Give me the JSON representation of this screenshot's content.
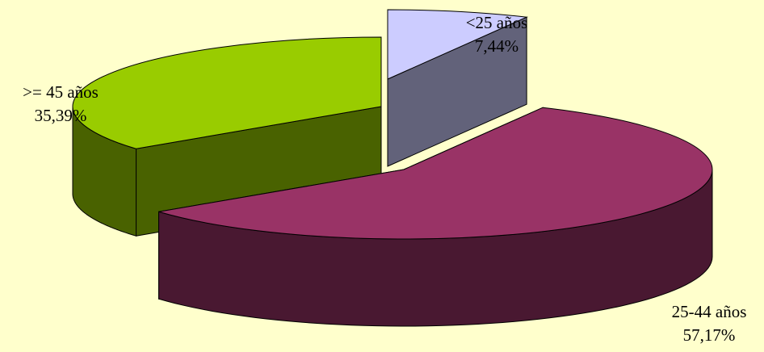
{
  "chart_data": {
    "type": "pie",
    "style": "3d-exploded",
    "background": "#ffffcc",
    "slices": [
      {
        "label": "<25 años",
        "value": 7.44,
        "value_label": "7,44%",
        "color": "#ccccff"
      },
      {
        "label": "25-44 años",
        "value": 57.17,
        "value_label": "57,17%",
        "color": "#993366"
      },
      {
        "label": ">= 45 años",
        "value": 35.39,
        "value_label": "35,39%",
        "color": "#99cc00"
      }
    ]
  }
}
